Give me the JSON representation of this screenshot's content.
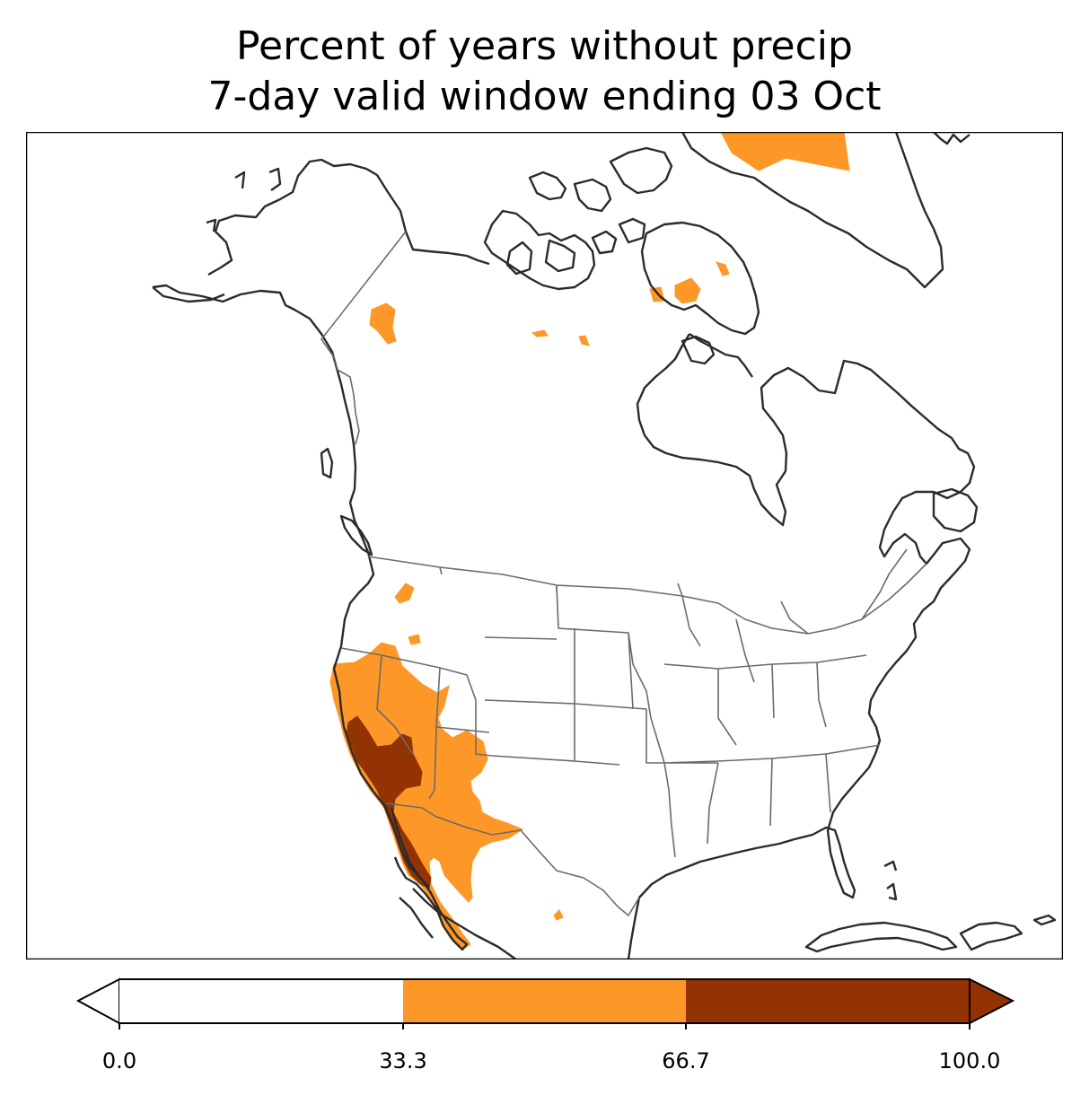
{
  "title": {
    "line1": "Percent of years without precip",
    "line2": "7-day valid window ending 03 Oct"
  },
  "colors": {
    "low": "#ffffff",
    "mid": "#fd9727",
    "high": "#933303",
    "coast": "#2b2b2b",
    "border": "#6b6b6b"
  },
  "colorbar": {
    "ticks": [
      "0.0",
      "33.3",
      "66.7",
      "100.0"
    ],
    "bins": [
      {
        "from": 0.0,
        "to": 33.3,
        "color": "#ffffff"
      },
      {
        "from": 33.3,
        "to": 66.7,
        "color": "#fd9727"
      },
      {
        "from": 66.7,
        "to": 100.0,
        "color": "#933303"
      }
    ],
    "extend": "both"
  }
}
